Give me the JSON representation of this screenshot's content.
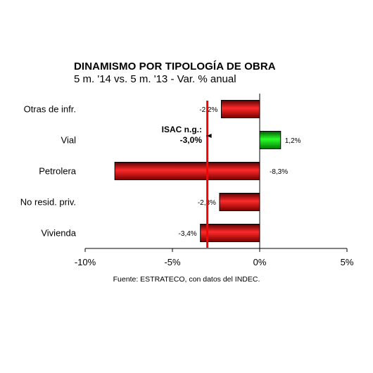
{
  "chart_data": {
    "type": "bar",
    "orientation": "horizontal",
    "title": "DINAMISMO POR TIPOLOGÍA DE OBRA",
    "subtitle": "5 m. '14 vs. 5 m. '13 - Var. % anual",
    "categories": [
      "Otras de infr.",
      "Vial",
      "Petrolera",
      "No resid. priv.",
      "Vivienda"
    ],
    "values": [
      -2.2,
      1.2,
      -8.3,
      -2.3,
      -3.4
    ],
    "value_labels": [
      "-2,2%",
      "1,2%",
      "-8,3%",
      "-2,3%",
      "-3,4%"
    ],
    "xlim": [
      -10,
      5
    ],
    "x_ticks": [
      -10,
      -5,
      0,
      5
    ],
    "x_tick_labels": [
      "-10%",
      "-5%",
      "0%",
      "5%"
    ],
    "grid": false,
    "colors": {
      "negative": "#e00000",
      "positive": "#00cc00",
      "reference_line": "#ff0000"
    },
    "reference_line": {
      "value": -3.0,
      "label_line1": "ISAC n.g.:",
      "label_line2": "-3,0%"
    },
    "source": "Fuente: ESTRATECO, con datos del INDEC."
  }
}
